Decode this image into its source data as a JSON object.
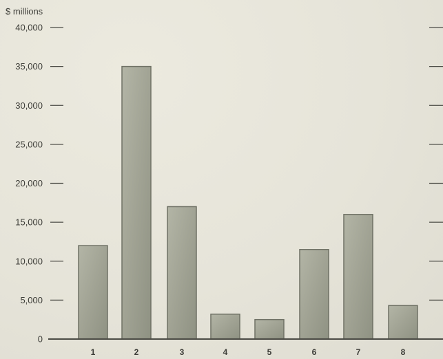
{
  "chart_data": {
    "type": "bar",
    "unit_label": "$ millions",
    "categories": [
      "1",
      "2",
      "3",
      "4",
      "5",
      "6",
      "7",
      "8"
    ],
    "values": [
      12000,
      35000,
      17000,
      3200,
      2500,
      11500,
      16000,
      4300
    ],
    "ylim": [
      0,
      40000
    ],
    "y_ticks": [
      {
        "value": 0,
        "label": "0"
      },
      {
        "value": 5000,
        "label": "5,000"
      },
      {
        "value": 10000,
        "label": "10,000"
      },
      {
        "value": 15000,
        "label": "15,000"
      },
      {
        "value": 20000,
        "label": "20,000"
      },
      {
        "value": 25000,
        "label": "25,000"
      },
      {
        "value": 30000,
        "label": "30,000"
      },
      {
        "value": 35000,
        "label": "35,000"
      },
      {
        "value": 40000,
        "label": "40,000"
      }
    ],
    "grid": false,
    "bar_color": "#a3a596",
    "bar_edge_color": "#6f7165"
  }
}
